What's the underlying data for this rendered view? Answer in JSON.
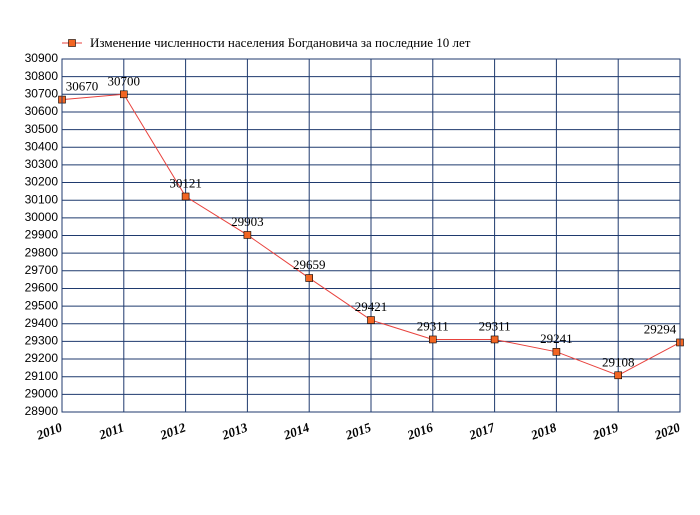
{
  "chart_data": {
    "type": "line",
    "x": [
      2010,
      2011,
      2012,
      2013,
      2014,
      2015,
      2016,
      2017,
      2018,
      2019,
      2020
    ],
    "series": [
      {
        "name": "Изменение численности населения Богдановича за последние 10 лет",
        "color": "#e8423d",
        "marker_color": "#f26522",
        "values": [
          30670,
          30700,
          30121,
          29903,
          29659,
          29421,
          29311,
          29311,
          29241,
          29108,
          29294
        ]
      }
    ],
    "xlim": [
      2010,
      2020
    ],
    "xticks": [
      2010,
      2011,
      2012,
      2013,
      2014,
      2015,
      2016,
      2017,
      2018,
      2019,
      2020
    ],
    "ylim": [
      28900,
      30900
    ],
    "yticks": [
      28900,
      29000,
      29100,
      29200,
      29300,
      29400,
      29500,
      29600,
      29700,
      29800,
      29900,
      30000,
      30100,
      30200,
      30300,
      30400,
      30500,
      30600,
      30700,
      30800,
      30900
    ],
    "grid": true,
    "legend": "top"
  }
}
